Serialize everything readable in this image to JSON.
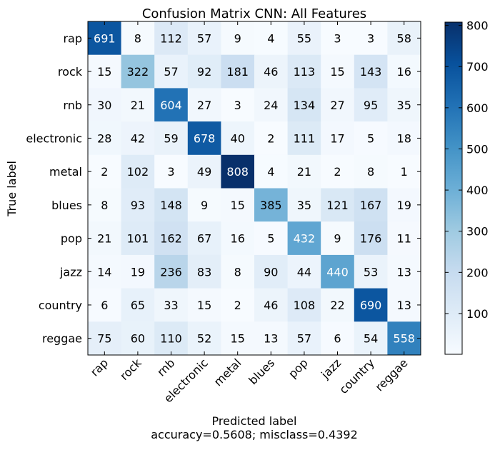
{
  "chart_data": {
    "type": "heatmap",
    "title": "Confusion Matrix CNN: All Features",
    "xlabel": "Predicted label",
    "xlabel_note": "accuracy=0.5608; misclass=0.4392",
    "ylabel": "True label",
    "categories": [
      "rap",
      "rock",
      "rnb",
      "electronic",
      "metal",
      "blues",
      "pop",
      "jazz",
      "country",
      "reggae"
    ],
    "matrix": [
      [
        691,
        8,
        112,
        57,
        9,
        4,
        55,
        3,
        3,
        58
      ],
      [
        15,
        322,
        57,
        92,
        181,
        46,
        113,
        15,
        143,
        16
      ],
      [
        30,
        21,
        604,
        27,
        3,
        24,
        134,
        27,
        95,
        35
      ],
      [
        28,
        42,
        59,
        678,
        40,
        2,
        111,
        17,
        5,
        18
      ],
      [
        2,
        102,
        3,
        49,
        808,
        4,
        21,
        2,
        8,
        1
      ],
      [
        8,
        93,
        148,
        9,
        15,
        385,
        35,
        121,
        167,
        19
      ],
      [
        21,
        101,
        162,
        67,
        16,
        5,
        432,
        9,
        176,
        11
      ],
      [
        14,
        19,
        236,
        83,
        8,
        90,
        44,
        440,
        53,
        13
      ],
      [
        6,
        65,
        33,
        15,
        2,
        46,
        108,
        22,
        690,
        13
      ],
      [
        75,
        60,
        110,
        52,
        15,
        13,
        57,
        6,
        54,
        558
      ]
    ],
    "color_range": [
      1,
      808
    ],
    "colormap": "Blues",
    "colorbar_ticks": [
      100,
      200,
      300,
      400,
      500,
      600,
      700,
      800
    ],
    "text_color_light": "#ffffff",
    "text_color_dark": "#000000"
  }
}
